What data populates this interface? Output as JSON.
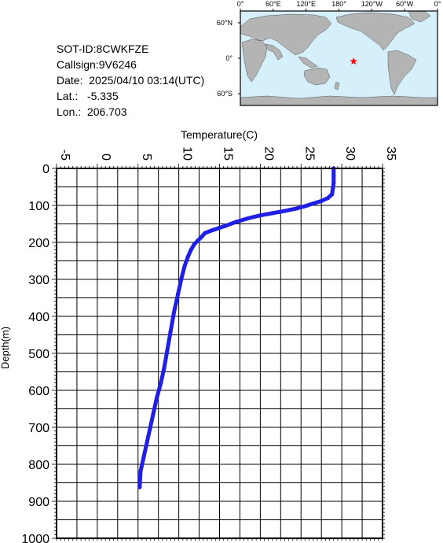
{
  "header": {
    "sot_id": "SOT-ID:8CWKFZE",
    "callsign": "Callsign:9V6246",
    "date": "Date:  2025/04/10 03:14(UTC)",
    "lat": "Lat.:   -5.335",
    "lon": "Lon.:  206.703"
  },
  "map": {
    "lon_labels": [
      "0°",
      "60°E",
      "120°E",
      "180°",
      "120°W",
      "60°W",
      "0°"
    ],
    "lat_labels": [
      "60°N",
      "0°",
      "60°S"
    ],
    "marker_lat": -5.335,
    "marker_lon": 206.703,
    "ocean_color": "#d6f0fb",
    "land_color": "#b4b4b4",
    "marker_color": "#ff0000"
  },
  "chart_data": {
    "type": "line",
    "xlabel": "Temperature(C)",
    "ylabel": "Depth(m)",
    "xlim": [
      -5,
      35
    ],
    "ylim": [
      1000,
      0
    ],
    "x_ticks": [
      -5,
      0,
      5,
      10,
      15,
      20,
      25,
      30,
      35
    ],
    "y_ticks": [
      0,
      100,
      200,
      300,
      400,
      500,
      600,
      700,
      800,
      900,
      1000
    ],
    "grid": true,
    "x_axis_position": "top",
    "series": [
      {
        "color": "#1f1fe6",
        "points": [
          [
            29.0,
            0
          ],
          [
            29.0,
            20
          ],
          [
            29.0,
            40
          ],
          [
            28.9,
            55
          ],
          [
            28.8,
            70
          ],
          [
            28.3,
            80
          ],
          [
            27.5,
            88
          ],
          [
            26.5,
            95
          ],
          [
            25.5,
            102
          ],
          [
            24.5,
            108
          ],
          [
            23.0,
            115
          ],
          [
            21.5,
            121
          ],
          [
            20.0,
            127
          ],
          [
            18.5,
            135
          ],
          [
            17.0,
            145
          ],
          [
            15.5,
            157
          ],
          [
            14.0,
            168
          ],
          [
            13.2,
            175
          ],
          [
            12.8,
            185
          ],
          [
            12.3,
            196
          ],
          [
            11.9,
            205
          ],
          [
            11.5,
            220
          ],
          [
            11.1,
            240
          ],
          [
            10.7,
            265
          ],
          [
            10.3,
            300
          ],
          [
            9.9,
            340
          ],
          [
            9.4,
            390
          ],
          [
            9.0,
            440
          ],
          [
            8.6,
            490
          ],
          [
            8.2,
            540
          ],
          [
            7.8,
            580
          ],
          [
            7.3,
            620
          ],
          [
            6.9,
            660
          ],
          [
            6.5,
            700
          ],
          [
            6.1,
            740
          ],
          [
            5.7,
            780
          ],
          [
            5.3,
            820
          ],
          [
            5.2,
            862
          ]
        ]
      }
    ]
  }
}
